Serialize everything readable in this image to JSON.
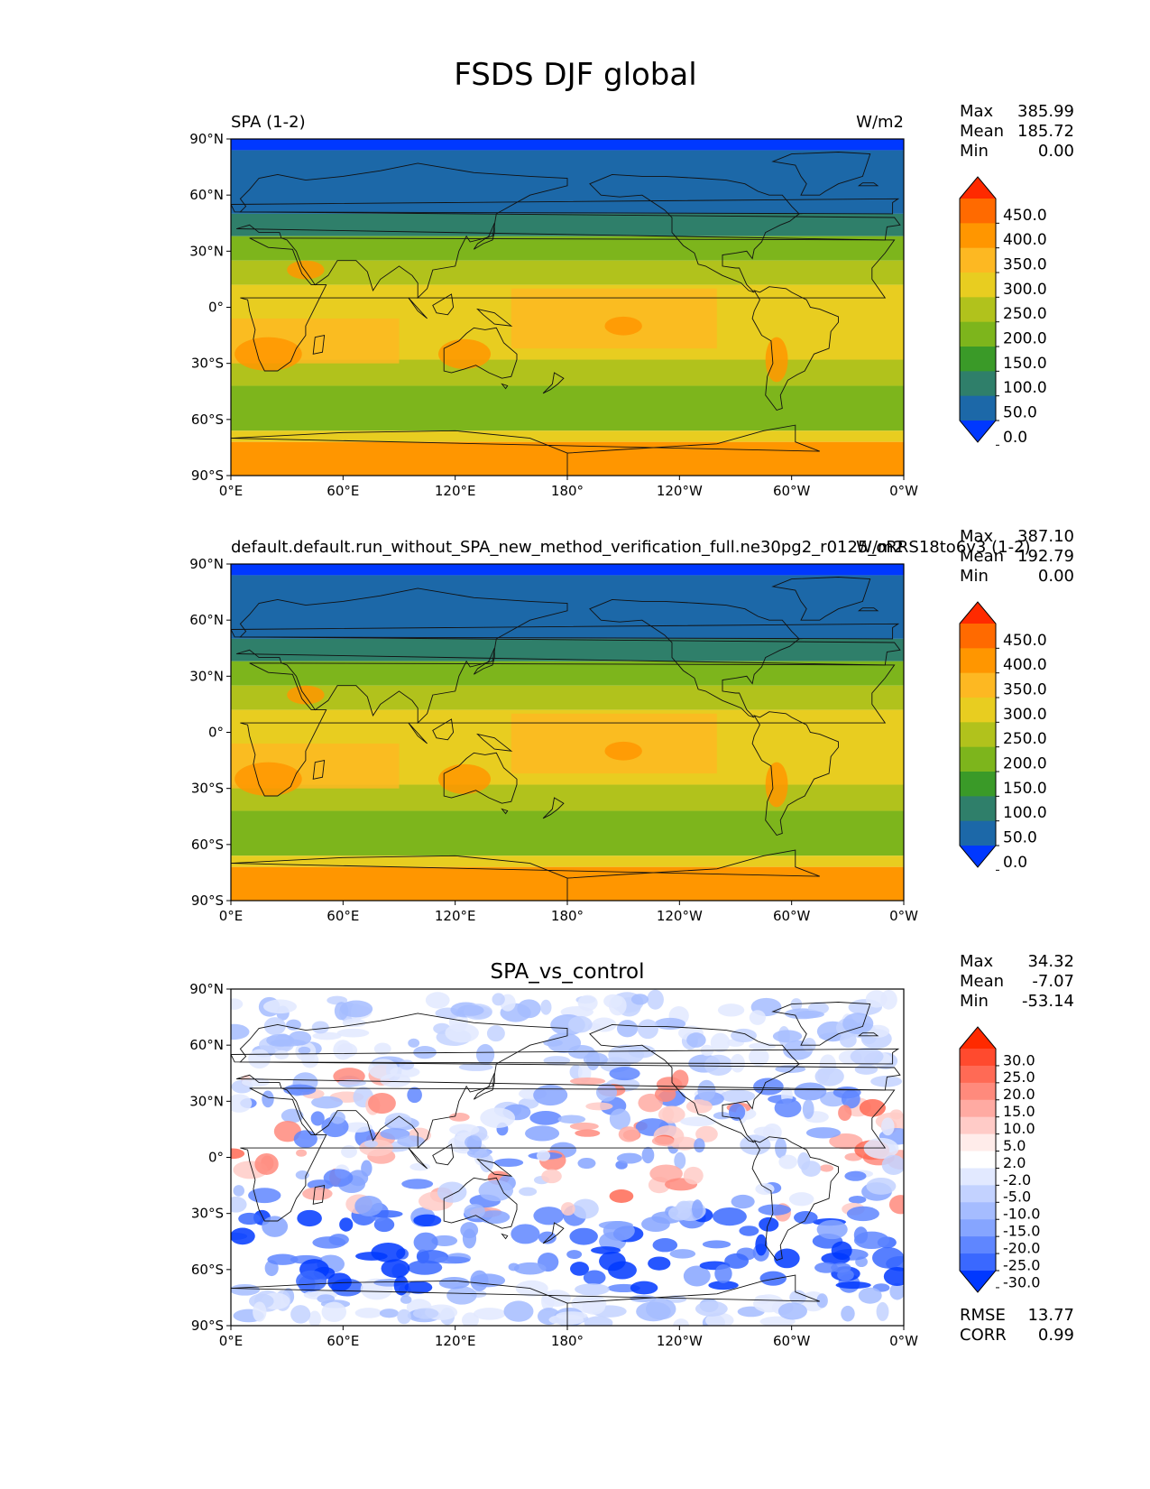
{
  "figure": {
    "title": "FSDS DJF global"
  },
  "axes": {
    "lat_ticks": [
      "90°N",
      "60°N",
      "30°N",
      "0°",
      "30°S",
      "60°S",
      "90°S"
    ],
    "lon_ticks": [
      "0°E",
      "60°E",
      "120°E",
      "180°",
      "120°W",
      "60°W",
      "0°W"
    ]
  },
  "chart_data": [
    {
      "type": "heatmap",
      "left_title": "SPA (1-2)",
      "center_title": "",
      "units": "W/m2",
      "stats": [
        {
          "label": "Max",
          "value": "385.99"
        },
        {
          "label": "Mean",
          "value": "185.72"
        },
        {
          "label": "Min",
          "value": "0.00"
        }
      ],
      "extra_stats": [],
      "colorbar": {
        "levels": [
          "450.0",
          "400.0",
          "350.0",
          "300.0",
          "250.0",
          "200.0",
          "150.0",
          "100.0",
          "50.0",
          "0.0"
        ],
        "colors": [
          "#ff2a00",
          "#ff6a00",
          "#ff9600",
          "#fdb822",
          "#e8cd20",
          "#b1c21c",
          "#7db51c",
          "#3a9a28",
          "#2f7f6a",
          "#1c68a8",
          "#0038ff"
        ]
      },
      "xlim": [
        0,
        360
      ],
      "ylim": [
        -90,
        90
      ]
    },
    {
      "type": "heatmap",
      "left_title": "default.default.run_without_SPA_new_method_verification_full.ne30pg2_r0125_oRRS18to6v3 (1-2)",
      "center_title": "",
      "units": "W/m2",
      "stats": [
        {
          "label": "Max",
          "value": "387.10"
        },
        {
          "label": "Mean",
          "value": "192.79"
        },
        {
          "label": "Min",
          "value": "0.00"
        }
      ],
      "extra_stats": [],
      "colorbar": {
        "levels": [
          "450.0",
          "400.0",
          "350.0",
          "300.0",
          "250.0",
          "200.0",
          "150.0",
          "100.0",
          "50.0",
          "0.0"
        ],
        "colors": [
          "#ff2a00",
          "#ff6a00",
          "#ff9600",
          "#fdb822",
          "#e8cd20",
          "#b1c21c",
          "#7db51c",
          "#3a9a28",
          "#2f7f6a",
          "#1c68a8",
          "#0038ff"
        ]
      },
      "xlim": [
        0,
        360
      ],
      "ylim": [
        -90,
        90
      ]
    },
    {
      "type": "heatmap",
      "left_title": "",
      "center_title": "SPA_vs_control",
      "units": "",
      "stats": [
        {
          "label": "Max",
          "value": "34.32"
        },
        {
          "label": "Mean",
          "value": "-7.07"
        },
        {
          "label": "Min",
          "value": "-53.14"
        }
      ],
      "extra_stats": [
        {
          "label": "RMSE",
          "value": "13.77"
        },
        {
          "label": "CORR",
          "value": "0.99"
        }
      ],
      "colorbar": {
        "levels": [
          "30.0",
          "25.0",
          "20.0",
          "15.0",
          "10.0",
          "5.0",
          "2.0",
          "-2.0",
          "-5.0",
          "-10.0",
          "-15.0",
          "-20.0",
          "-25.0",
          "-30.0"
        ],
        "colors": [
          "#ff2a00",
          "#ff4a2e",
          "#ff6a55",
          "#ff8a7c",
          "#ffaaa2",
          "#ffcbc7",
          "#ffecea",
          "#ffffff",
          "#e2e9ff",
          "#c3d2ff",
          "#a5bcff",
          "#86a5ff",
          "#5f86ff",
          "#3a68ff",
          "#0038ff"
        ]
      },
      "xlim": [
        0,
        360
      ],
      "ylim": [
        -90,
        90
      ]
    }
  ]
}
